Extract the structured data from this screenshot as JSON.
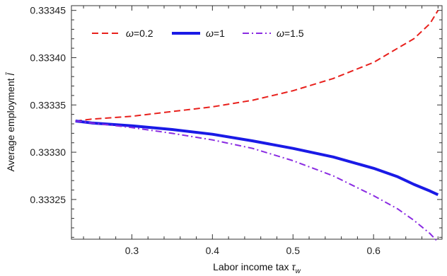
{
  "chart_data": {
    "type": "line",
    "xlabel": "Labor income tax",
    "xlabel_symbol": "τ",
    "xlabel_sub": "w",
    "ylabel": "Average employment",
    "ylabel_symbol": "l̄",
    "xlim": [
      0.225,
      0.685
    ],
    "ylim": [
      0.333208,
      0.333455
    ],
    "x_ticks": [
      0.3,
      0.4,
      0.5,
      0.6
    ],
    "x_tick_labels": [
      "0.3",
      "0.4",
      "0.5",
      "0.6"
    ],
    "y_ticks": [
      0.33325,
      0.3333,
      0.33335,
      0.3334,
      0.33345
    ],
    "y_tick_labels": [
      "0.33325",
      "0.33330",
      "0.33335",
      "0.33340",
      "0.33345"
    ],
    "grid": false,
    "legend_position": "top-left",
    "series": [
      {
        "name": "ω=0.2",
        "color": "#e8201c",
        "style": "dashed",
        "x": [
          0.23,
          0.25,
          0.3,
          0.35,
          0.4,
          0.45,
          0.5,
          0.55,
          0.6,
          0.63,
          0.65,
          0.67,
          0.68
        ],
        "y": [
          0.333333,
          0.333335,
          0.333338,
          0.333343,
          0.333348,
          0.333355,
          0.333365,
          0.333378,
          0.333395,
          0.33341,
          0.33342,
          0.333436,
          0.33345
        ]
      },
      {
        "name": "ω=1",
        "color": "#1a1ae6",
        "style": "solid",
        "x": [
          0.23,
          0.25,
          0.3,
          0.35,
          0.4,
          0.45,
          0.5,
          0.55,
          0.6,
          0.63,
          0.65,
          0.67,
          0.68
        ],
        "y": [
          0.333333,
          0.333331,
          0.333328,
          0.333324,
          0.333319,
          0.333312,
          0.333304,
          0.333295,
          0.333283,
          0.333274,
          0.333266,
          0.333259,
          0.333255
        ]
      },
      {
        "name": "ω=1.5",
        "color": "#8a2be2",
        "style": "dashdot",
        "x": [
          0.23,
          0.25,
          0.3,
          0.35,
          0.4,
          0.45,
          0.5,
          0.55,
          0.6,
          0.63,
          0.65,
          0.67,
          0.68
        ],
        "y": [
          0.333333,
          0.333331,
          0.333326,
          0.33332,
          0.333313,
          0.333304,
          0.333291,
          0.333275,
          0.333254,
          0.33324,
          0.333228,
          0.333214,
          0.333205
        ]
      }
    ]
  }
}
